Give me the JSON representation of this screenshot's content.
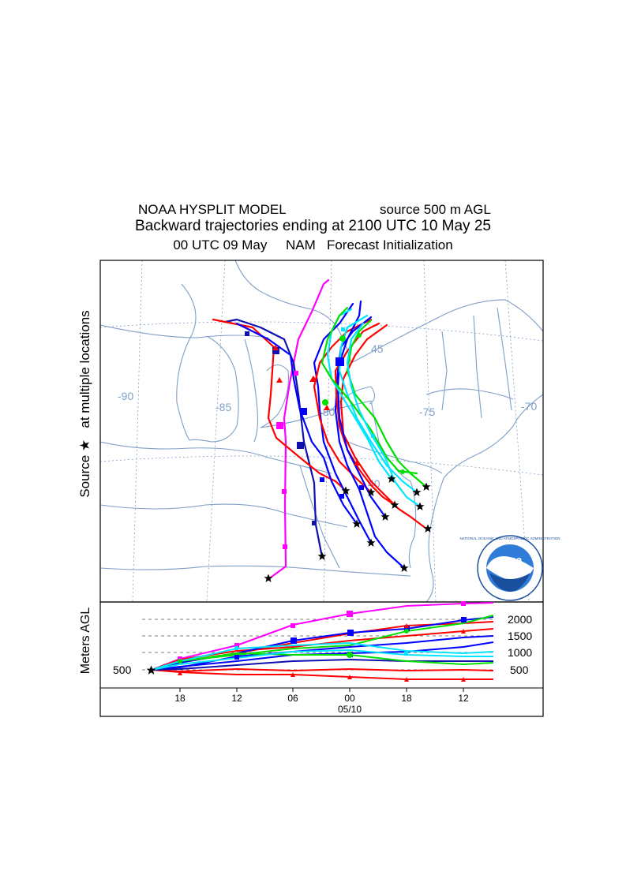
{
  "header": {
    "model_title": "NOAA HYSPLIT MODEL",
    "source_height": "source 500 m AGL",
    "main_title": "Backward trajectories ending at 2100 UTC 10 May 25",
    "init_date": "00 UTC 09 May",
    "met_model": "NAM",
    "init_label": "Forecast Initialization"
  },
  "side_label": {
    "source": "Source",
    "star": "★",
    "multi": "at multiple locations"
  },
  "map": {
    "lon_labels": [
      "-90",
      "-85",
      "-80",
      "-75",
      "-70"
    ],
    "lat_labels": [
      "45",
      "40"
    ],
    "logo_text": "noaa",
    "logo_ring_text": "NATIONAL OCEANIC AND ATMOSPHERIC ADMINISTRATION"
  },
  "height_panel": {
    "ylabel": "Meters AGL",
    "y_ticks": [
      "2000",
      "1500",
      "1000",
      "500"
    ],
    "left_label": "500",
    "x_ticks": [
      "18",
      "12",
      "06",
      "00",
      "18",
      "12"
    ],
    "date_label": "05/10"
  },
  "colors": {
    "red": "#ff0000",
    "blue": "#0000ff",
    "green": "#00e000",
    "cyan": "#00e5ff",
    "navy": "#1010b0",
    "magenta": "#ff00ff",
    "map": "#7f9fc6"
  }
}
